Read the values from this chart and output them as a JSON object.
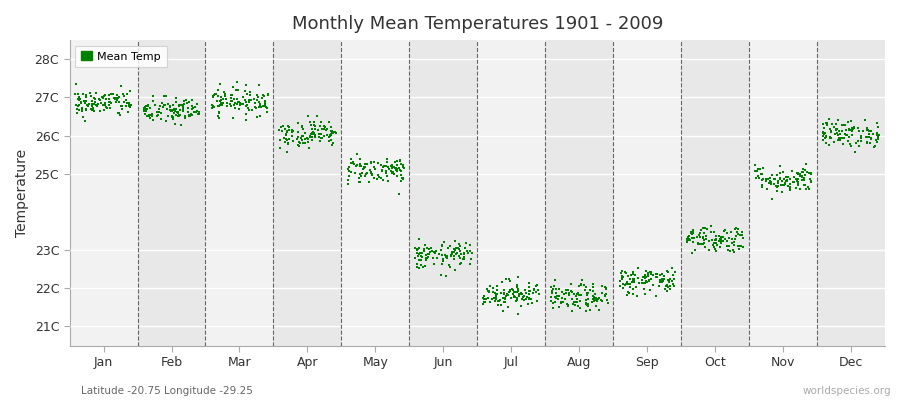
{
  "title": "Monthly Mean Temperatures 1901 - 2009",
  "ylabel": "Temperature",
  "xlabel_coords": "Latitude -20.75 Longitude -29.25",
  "watermark": "worldspecies.org",
  "yticks": [
    21,
    22,
    23,
    25,
    26,
    27,
    28
  ],
  "ytick_labels": [
    "21C",
    "22C",
    "23C",
    "25C",
    "26C",
    "27C",
    "28C"
  ],
  "ylim": [
    20.5,
    28.5
  ],
  "dot_color": "#008000",
  "dot_size": 2.5,
  "background_color": "#e8e8e8",
  "monthly_means": [
    26.85,
    26.65,
    26.9,
    26.05,
    25.1,
    22.85,
    21.85,
    21.75,
    22.2,
    23.3,
    24.85,
    26.05
  ],
  "monthly_std": [
    0.18,
    0.18,
    0.18,
    0.18,
    0.18,
    0.18,
    0.18,
    0.18,
    0.18,
    0.18,
    0.18,
    0.18
  ],
  "months": [
    "Jan",
    "Feb",
    "Mar",
    "Apr",
    "May",
    "Jun",
    "Jul",
    "Aug",
    "Sep",
    "Oct",
    "Nov",
    "Dec"
  ],
  "month_positions": [
    0.5,
    1.5,
    2.5,
    3.5,
    4.5,
    5.5,
    6.5,
    7.5,
    8.5,
    9.5,
    10.5,
    11.5
  ],
  "n_points": 109,
  "seed": 42,
  "alt_band_color": "#f2f2f2",
  "main_band_color": "#e8e8e8"
}
